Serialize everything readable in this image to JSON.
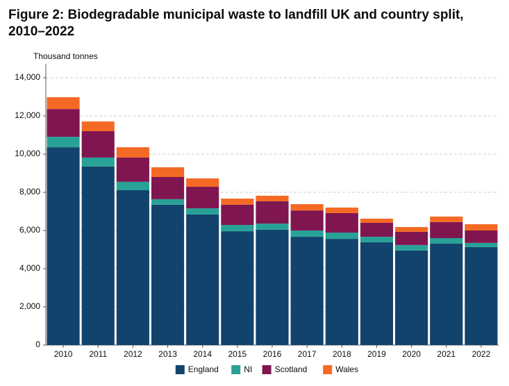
{
  "chart_data": {
    "type": "stacked-bar",
    "title": "Figure 2: Biodegradable municipal waste to landfill UK and country split, 2010–2022",
    "y_axis_label": "Thousand tonnes",
    "categories": [
      "2010",
      "2011",
      "2012",
      "2013",
      "2014",
      "2015",
      "2016",
      "2017",
      "2018",
      "2019",
      "2020",
      "2021",
      "2022"
    ],
    "series": [
      {
        "name": "England",
        "color": "#12436d",
        "values": [
          10360,
          9350,
          8110,
          7350,
          6840,
          5960,
          6040,
          5670,
          5560,
          5380,
          4950,
          5310,
          5130
        ]
      },
      {
        "name": "NI",
        "color": "#28a197",
        "values": [
          545,
          470,
          440,
          290,
          320,
          330,
          320,
          330,
          330,
          290,
          290,
          290,
          220
        ]
      },
      {
        "name": "Scotland",
        "color": "#801650",
        "values": [
          1455,
          1380,
          1270,
          1160,
          1130,
          1060,
          1170,
          1050,
          1020,
          730,
          690,
          840,
          650
        ]
      },
      {
        "name": "Wales",
        "color": "#f46a25",
        "values": [
          620,
          510,
          540,
          510,
          440,
          320,
          290,
          330,
          290,
          220,
          250,
          290,
          330
        ]
      }
    ],
    "ylim": [
      0,
      14000
    ],
    "yticks": [
      0,
      {
        "value": 2000,
        "label": "2,000"
      },
      {
        "value": 4000,
        "label": "4,000"
      },
      {
        "value": 6000,
        "label": "6,000"
      },
      {
        "value": 8000,
        "label": "8,000"
      },
      {
        "value": 10000,
        "label": "10,000"
      },
      {
        "value": 12000,
        "label": "12,000"
      },
      {
        "value": 14000,
        "label": "14,000"
      }
    ],
    "grid": true
  }
}
